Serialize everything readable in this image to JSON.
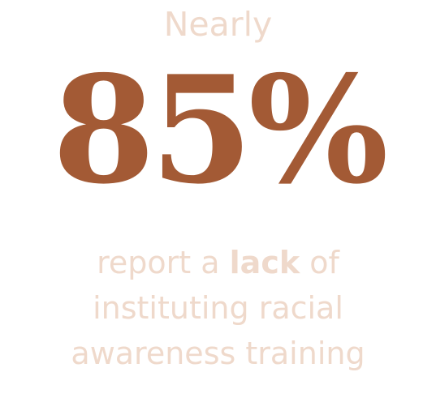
{
  "stat": {
    "lead": "Nearly",
    "value": "85%",
    "caption": {
      "line1_before": "report a ",
      "line1_emphasis": "lack",
      "line1_after": " of",
      "line2": "instituting racial",
      "line3": "awareness training"
    }
  },
  "colors": {
    "accent": "#A35A35",
    "muted": "#EFD9CB",
    "background": "#FFFFFF"
  }
}
